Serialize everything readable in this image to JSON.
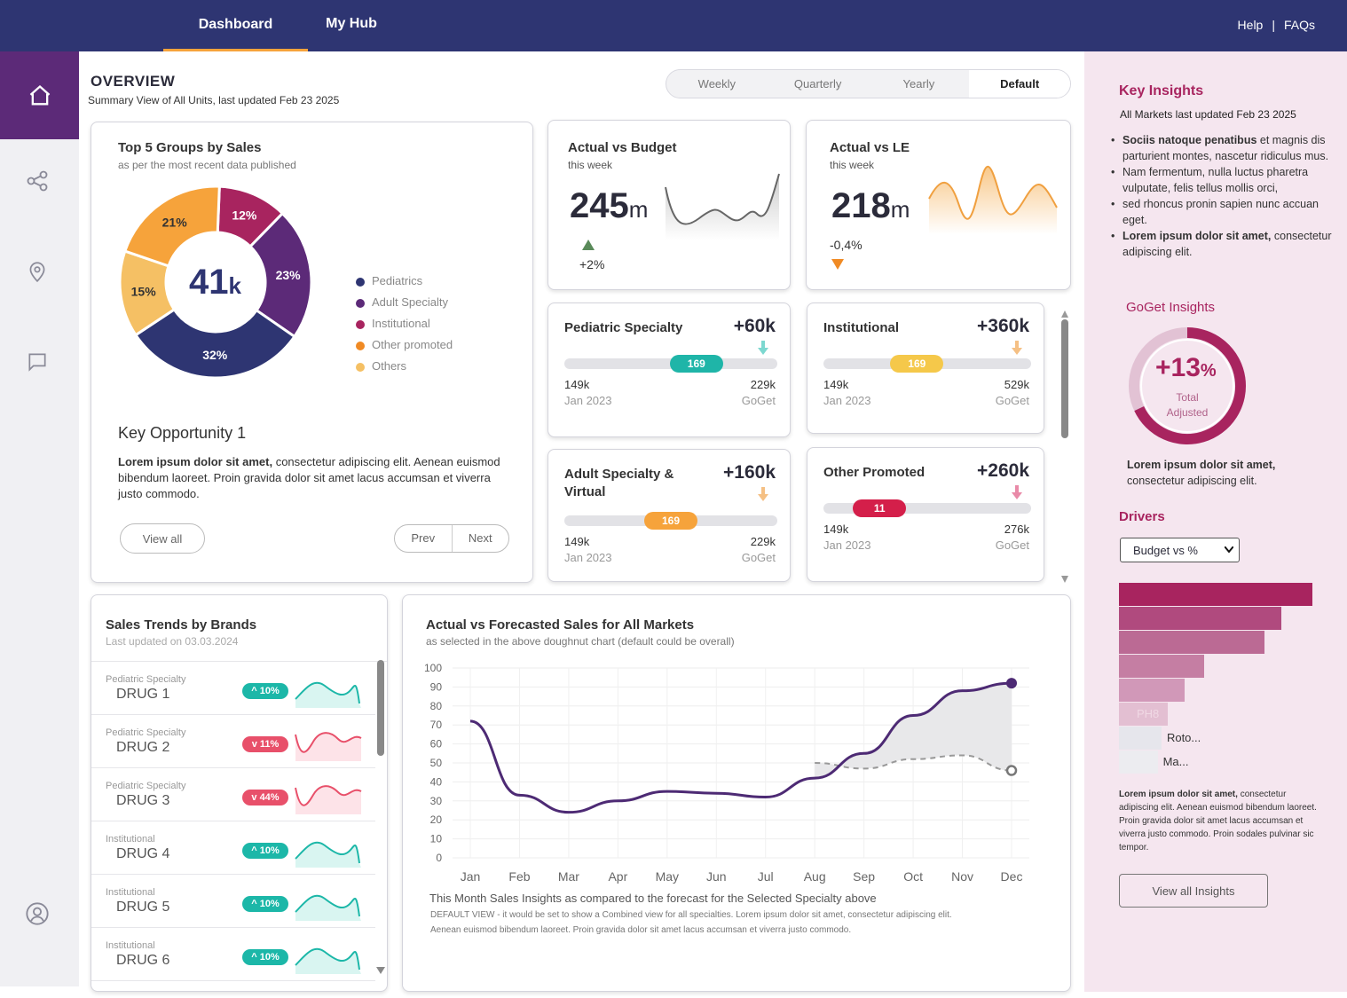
{
  "nav": {
    "tabs": [
      {
        "label": "Dashboard"
      },
      {
        "label": "My Hub"
      }
    ],
    "help": "Help",
    "sep": "|",
    "faqs": "FAQs"
  },
  "overview": {
    "title": "OVERVIEW",
    "subtitle": "Summary View of All Units, last updated Feb 23 2025",
    "periods": [
      "Weekly",
      "Quarterly",
      "Yearly",
      "Default"
    ],
    "selected_period": "Default"
  },
  "top5": {
    "title": "Top 5 Groups by Sales",
    "subtitle": "as per the most recent data published",
    "center_value": "41",
    "center_unit": "k",
    "legend": [
      {
        "name": "Pediatrics",
        "color": "#2e3572"
      },
      {
        "name": "Adult Specialty",
        "color": "#5c2a78"
      },
      {
        "name": "Institutional",
        "color": "#a8245f"
      },
      {
        "name": "Other promoted",
        "color": "#f08a24"
      },
      {
        "name": "Others",
        "color": "#f5c064"
      }
    ],
    "slices": [
      {
        "label": "12%",
        "value": 12,
        "color": "#a8245f"
      },
      {
        "label": "23%",
        "value": 23,
        "color": "#5c2a78"
      },
      {
        "label": "32%",
        "value": 32,
        "color": "#2e3572"
      },
      {
        "label": "15%",
        "value": 15,
        "color": "#f5c064"
      },
      {
        "label": "21%",
        "value": 21,
        "color": "#f6a33b"
      }
    ],
    "opp_title": "Key Opportunity 1",
    "opp_bold": "Lorem ipsum dolor sit amet,",
    "opp_text": " consectetur adipiscing elit. Aenean euismod bibendum laoreet. Proin gravida dolor sit amet lacus accumsan et viverra justo commodo.",
    "view_all": "View all",
    "prev": "Prev",
    "next": "Next"
  },
  "avb": {
    "title": "Actual vs Budget",
    "sub": "this week",
    "value": "245",
    "unit": "m",
    "delta": "+2%"
  },
  "avle": {
    "title": "Actual vs LE",
    "sub": "this week",
    "value": "218",
    "unit": "m",
    "delta": "-0,4%"
  },
  "kpis": [
    {
      "title": "Pediatric Specialty",
      "delta": "+60k",
      "badge": "169",
      "badge_color": "#1fb5a8",
      "fill": 0.62,
      "min": "149k",
      "max": "229k",
      "from": "Jan 2023",
      "to": "GoGet",
      "arrow_color": "#7dd8d0"
    },
    {
      "title": "Institutional",
      "delta": "+360k",
      "badge": "169",
      "badge_color": "#f5c84a",
      "fill": 0.45,
      "min": "149k",
      "max": "529k",
      "from": "Jan 2023",
      "to": "GoGet",
      "arrow_color": "#f5c084"
    },
    {
      "title": "Adult Specialty &",
      "title2": "Virtual",
      "delta": "+160k",
      "badge": "169",
      "badge_color": "#f6a33b",
      "fill": 0.5,
      "min": "149k",
      "max": "229k",
      "from": "Jan 2023",
      "to": "GoGet",
      "arrow_color": "#f5c084"
    },
    {
      "title": "Other Promoted",
      "delta": "+260k",
      "badge": "11",
      "badge_color": "#d41f4a",
      "fill": 0.27,
      "min": "149k",
      "max": "276k",
      "from": "Jan 2023",
      "to": "GoGet",
      "arrow_color": "#e98aa8"
    }
  ],
  "brands": {
    "title": "Sales Trends by Brands",
    "sub": "Last updated on 03.03.2024",
    "rows": [
      {
        "spec": "Pediatric Specialty",
        "drug": "DRUG 1",
        "chg": "^ 10%",
        "up": true
      },
      {
        "spec": "Pediatric Specialty",
        "drug": "DRUG 2",
        "chg": "v 11%",
        "up": false
      },
      {
        "spec": "Pediatric Specialty",
        "drug": "DRUG 3",
        "chg": "v 44%",
        "up": false
      },
      {
        "spec": "Institutional",
        "drug": "DRUG 4",
        "chg": "^ 10%",
        "up": true
      },
      {
        "spec": "Institutional",
        "drug": "DRUG 5",
        "chg": "^ 10%",
        "up": true
      },
      {
        "spec": "Institutional",
        "drug": "DRUG 6",
        "chg": "^ 10%",
        "up": true
      }
    ]
  },
  "forecast": {
    "title": "Actual vs Forecasted Sales for All Markets",
    "sub": "as selected in the above doughnut chart (default could be overall)",
    "insight_title": "This Month Sales Insights as compared to the forecast for the Selected Specialty above",
    "insight_text1": "DEFAULT VIEW -  it would be set to show a Combined view for all specialties. Lorem ipsum dolor sit amet, consectetur adipiscing elit.",
    "insight_text2": "Aenean euismod bibendum laoreet. Proin gravida dolor sit amet lacus accumsan et viverra justo commodo."
  },
  "chart_data": {
    "type": "line",
    "x": [
      "Jan",
      "Feb",
      "Mar",
      "Apr",
      "May",
      "Jun",
      "Jul",
      "Aug",
      "Sep",
      "Oct",
      "Nov",
      "Dec"
    ],
    "yticks": [
      "0",
      "10",
      "20",
      "30",
      "40",
      "50",
      "60",
      "70",
      "80",
      "90",
      "100"
    ],
    "ylim": [
      0,
      100
    ],
    "series": [
      {
        "values": [
          72,
          33,
          24,
          30,
          35,
          34,
          32,
          42,
          55,
          75,
          88,
          92
        ]
      },
      {
        "values": [
          null,
          null,
          null,
          null,
          null,
          null,
          null,
          50,
          47,
          52,
          54,
          46
        ]
      }
    ]
  },
  "insights": {
    "title": "Key Insights",
    "sub": "All Markets last updated Feb 23 2025",
    "bullets": [
      {
        "b": "Sociis natoque penatibus",
        "t": " et magnis dis parturient montes, nascetur ridiculus mus."
      },
      {
        "b": "",
        "t": "Nam fermentum, nulla luctus pharetra vulputate, felis tellus mollis orci,"
      },
      {
        "b": "",
        "t": "sed rhoncus pronin sapien nunc accuan eget."
      },
      {
        "b": "Lorem ipsum dolor sit amet,",
        "t": " consectetur adipiscing elit."
      }
    ],
    "goget_title": "GoGet Insights",
    "goget_value": "+13",
    "goget_unit": "%",
    "goget_l1": "Total",
    "goget_l2": "Adjusted",
    "goget_fill": 0.68,
    "goget_bold": "Lorem ipsum dolor sit amet,",
    "goget_text": "consectetur adipiscing elit.",
    "drivers_title": "Drivers",
    "drivers_select": "Budget vs %",
    "drivers_bars": [
      {
        "v": 1.0,
        "c": "#a8245f",
        "l": ""
      },
      {
        "v": 0.84,
        "c": "#b04a7e",
        "l": ""
      },
      {
        "v": 0.75,
        "c": "#bb6a94",
        "l": ""
      },
      {
        "v": 0.44,
        "c": "#c57ea3",
        "l": ""
      },
      {
        "v": 0.34,
        "c": "#d198b8",
        "l": ""
      },
      {
        "v": 0.25,
        "c": "#e3bfd2",
        "l": "PH8"
      },
      {
        "v": 0.22,
        "c": "#e6e6ec",
        "l": "Roto..."
      },
      {
        "v": 0.2,
        "c": "#ececf0",
        "l": "Ma..."
      }
    ],
    "drivers_bold": "Lorem ipsum dolor sit amet,",
    "drivers_text": " consectetur adipiscing elit. Aenean euismod bibendum laoreet. Proin gravida dolor sit amet lacus accumsan et viverra justo commodo. Proin sodales pulvinar sic tempor.",
    "view_all": "View all Insights"
  }
}
